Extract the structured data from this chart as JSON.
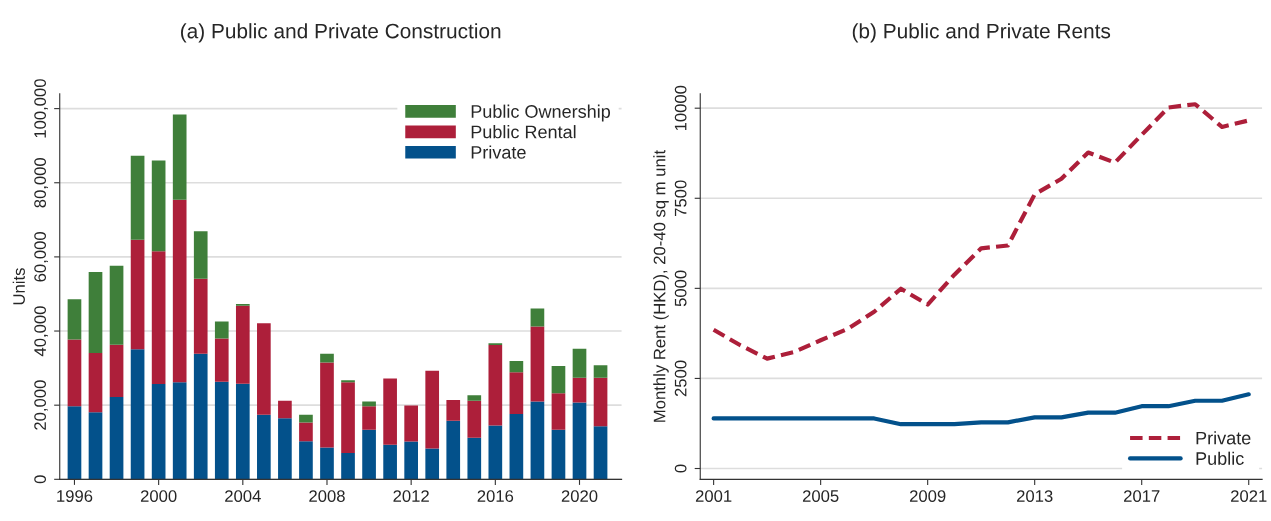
{
  "chart_data": [
    {
      "type": "bar",
      "title": "(a) Public and Private Construction",
      "ylabel": "Units",
      "stacked": true,
      "x": [
        1996,
        1997,
        1998,
        1999,
        2000,
        2001,
        2002,
        2003,
        2004,
        2005,
        2006,
        2007,
        2008,
        2009,
        2010,
        2011,
        2012,
        2013,
        2014,
        2015,
        2016,
        2017,
        2018,
        2019,
        2020,
        2021
      ],
      "series": [
        {
          "name": "Private",
          "color": "#03518b",
          "values": [
            19700,
            18100,
            22200,
            35100,
            25700,
            26200,
            33900,
            26300,
            25800,
            17400,
            16500,
            10300,
            8600,
            7100,
            13400,
            9300,
            10200,
            8300,
            15800,
            11200,
            14500,
            17600,
            21000,
            13400,
            20700,
            14300
          ]
        },
        {
          "name": "Public Rental",
          "color": "#ad1f3a",
          "values": [
            18000,
            16000,
            14100,
            29500,
            35800,
            49200,
            20200,
            11700,
            21000,
            24700,
            4700,
            5000,
            22900,
            19100,
            6300,
            17900,
            9700,
            21000,
            5600,
            10000,
            21700,
            11300,
            20200,
            9800,
            6700,
            13100
          ]
        },
        {
          "name": "Public Ownership",
          "color": "#3f7f3a",
          "values": [
            10900,
            21800,
            21300,
            22700,
            24500,
            23000,
            12800,
            4600,
            500,
            null,
            null,
            2100,
            2400,
            500,
            1300,
            null,
            null,
            null,
            null,
            1500,
            500,
            3000,
            4900,
            7400,
            7800,
            3400
          ]
        }
      ],
      "xlim": [
        1995.3,
        2022
      ],
      "xticks": [
        1996,
        2000,
        2004,
        2008,
        2012,
        2016,
        2020
      ],
      "ylim": [
        0,
        104000
      ],
      "yticks": [
        {
          "value": 0,
          "label": "0"
        },
        {
          "value": 20000,
          "label": "20,000"
        },
        {
          "value": 40000,
          "label": "40,000"
        },
        {
          "value": 60000,
          "label": "60,000"
        },
        {
          "value": 80000,
          "label": "80,000"
        },
        {
          "value": 100000,
          "label": "100,000"
        }
      ],
      "grid": "y",
      "legend": "top right"
    },
    {
      "type": "line",
      "title": "(b) Public and Private Rents",
      "ylabel": "Monthly Rent (HKD), 20-40 sq m unit",
      "x": [
        2001,
        2002,
        2003,
        2004,
        2005,
        2006,
        2007,
        2008,
        2009,
        2010,
        2011,
        2012,
        2013,
        2014,
        2015,
        2016,
        2017,
        2018,
        2019,
        2020,
        2021
      ],
      "series": [
        {
          "name": "Private",
          "color": "#ad1f3a",
          "line_style": "dashed",
          "values": [
            3850,
            3420,
            3050,
            3230,
            3560,
            3870,
            4350,
            4990,
            4550,
            5380,
            6110,
            6190,
            7610,
            8040,
            8770,
            8490,
            9260,
            10020,
            10110,
            9480,
            9660
          ]
        },
        {
          "name": "Public",
          "color": "#03518b",
          "line_style": "solid",
          "values": [
            1390,
            1390,
            1390,
            1390,
            1390,
            1390,
            1390,
            1230,
            1230,
            1230,
            1280,
            1280,
            1420,
            1420,
            1550,
            1550,
            1730,
            1730,
            1880,
            1880,
            2060
          ]
        }
      ],
      "xlim": [
        2000.5,
        2021.5
      ],
      "xticks": [
        2001,
        2005,
        2009,
        2013,
        2017,
        2021
      ],
      "ylim": [
        -300,
        10400
      ],
      "yticks": [
        0,
        2500,
        5000,
        7500,
        10000
      ],
      "grid": "y",
      "legend": "bottom right"
    }
  ]
}
